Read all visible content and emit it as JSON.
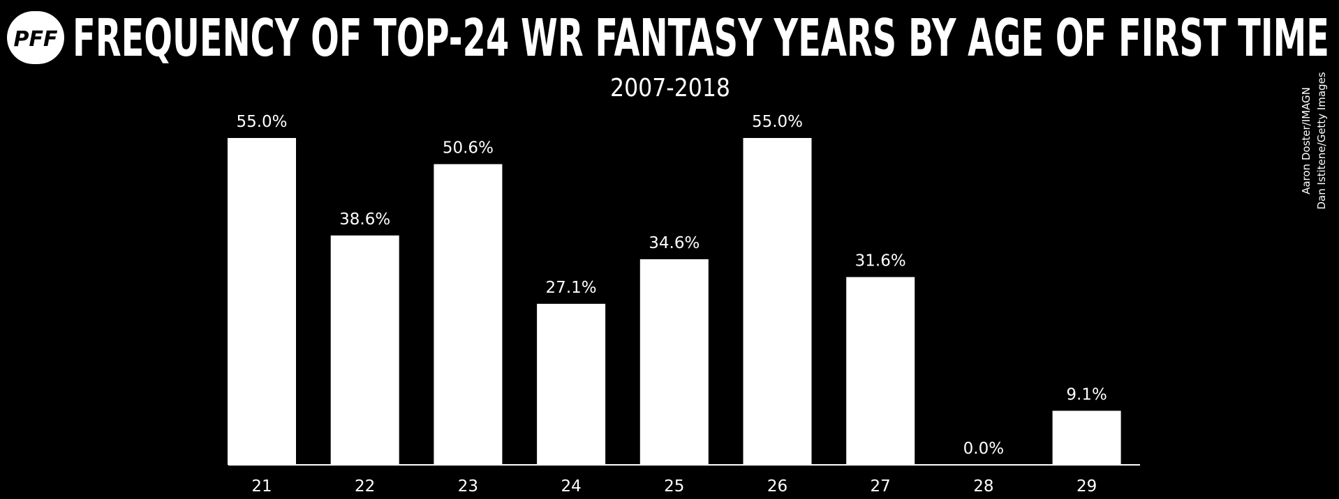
{
  "chart_data": {
    "type": "bar",
    "logo": "PFF",
    "title": "FREQUENCY OF TOP-24 WR FANTASY YEARS BY AGE OF FIRST TIME",
    "subtitle": "2007-2018",
    "credits": [
      "Aaron Doster/IMAGN",
      "Dan Istitene/Getty Images"
    ],
    "categories": [
      "21",
      "22",
      "23",
      "24",
      "25",
      "26",
      "27",
      "28",
      "29"
    ],
    "values": [
      55.0,
      38.6,
      50.6,
      27.1,
      34.6,
      55.0,
      31.6,
      0.0,
      9.1
    ],
    "value_labels": [
      "55.0%",
      "38.6%",
      "50.6%",
      "27.1%",
      "34.6%",
      "55.0%",
      "31.6%",
      "0.0%",
      "9.1%"
    ],
    "color": "#ffffff",
    "ylim": [
      0,
      55
    ],
    "grid": false
  }
}
